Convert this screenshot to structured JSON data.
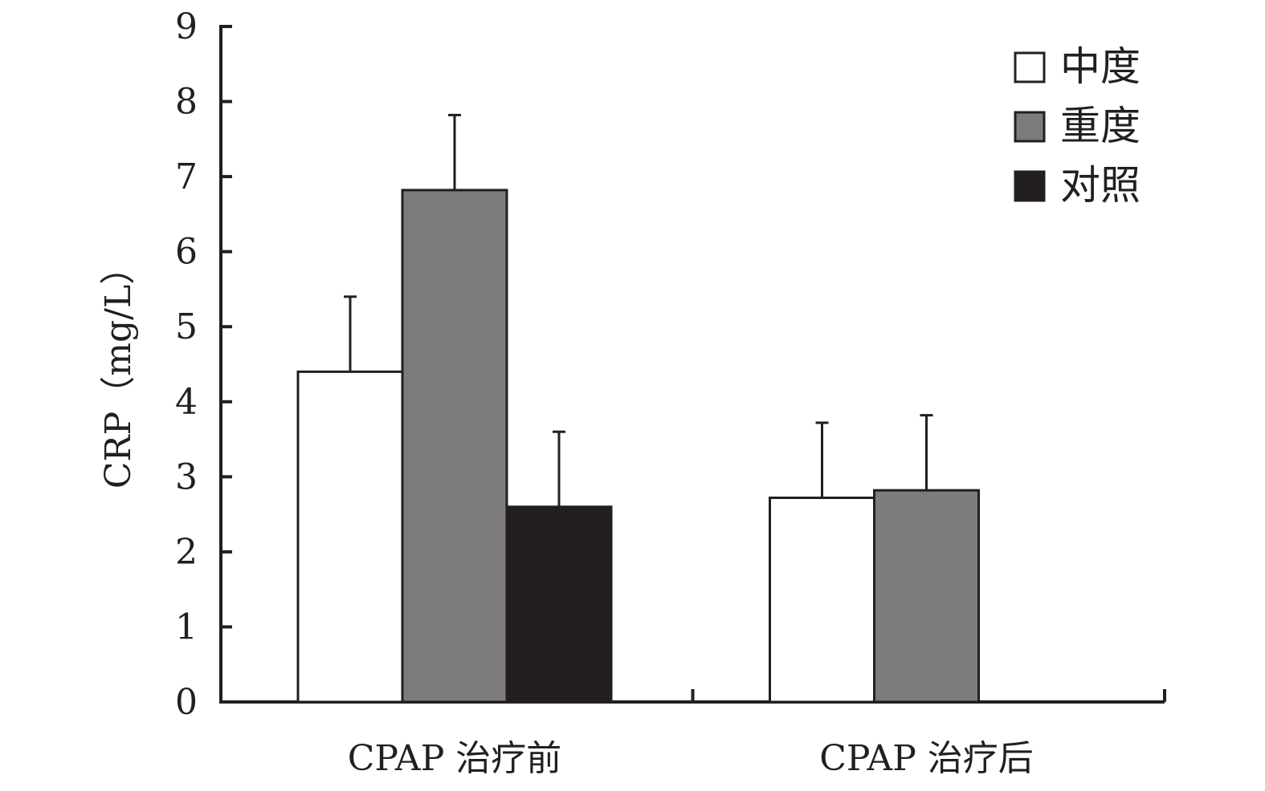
{
  "chart_data": {
    "type": "bar",
    "ylabel": "CRP（mg/L）",
    "categories": [
      "CPAP 治疗前",
      "CPAP 治疗后"
    ],
    "ylim": [
      0,
      9
    ],
    "yticks": [
      0,
      1,
      2,
      3,
      4,
      5,
      6,
      7,
      8,
      9
    ],
    "legend_position": "top-right",
    "grid": false,
    "series": [
      {
        "name": "中度",
        "color": "#ffffff",
        "values": [
          4.4,
          2.72
        ],
        "errors": [
          1.0,
          1.0
        ]
      },
      {
        "name": "重度",
        "color": "#7d7b7c",
        "values": [
          6.82,
          2.82
        ],
        "errors": [
          1.0,
          1.0
        ]
      },
      {
        "name": "对照",
        "color": "#231f20",
        "values": [
          2.6,
          null
        ],
        "errors": [
          1.0,
          null
        ]
      }
    ]
  }
}
